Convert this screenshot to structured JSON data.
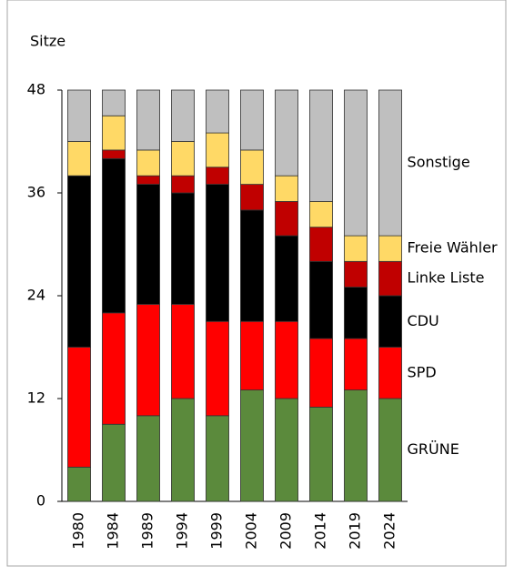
{
  "chart_data": {
    "type": "stacked-bar",
    "ylabel": "Sitze",
    "categories": [
      "1980",
      "1984",
      "1989",
      "1994",
      "1999",
      "2004",
      "2009",
      "2014",
      "2019",
      "2024"
    ],
    "series": [
      {
        "name": "GRÜNE",
        "color": "#5b8a3c",
        "values": [
          4,
          9,
          10,
          12,
          10,
          13,
          12,
          11,
          13,
          12
        ]
      },
      {
        "name": "SPD",
        "color": "#ff0000",
        "values": [
          14,
          13,
          13,
          11,
          11,
          8,
          9,
          8,
          6,
          6
        ]
      },
      {
        "name": "CDU",
        "color": "#000000",
        "values": [
          20,
          18,
          14,
          13,
          16,
          13,
          10,
          9,
          6,
          6
        ]
      },
      {
        "name": "Linke Liste",
        "color": "#c00000",
        "values": [
          0,
          1,
          1,
          2,
          2,
          3,
          4,
          4,
          3,
          4
        ]
      },
      {
        "name": "Freie Wähler",
        "color": "#ffd966",
        "values": [
          4,
          4,
          3,
          4,
          4,
          4,
          3,
          3,
          3,
          3
        ]
      },
      {
        "name": "Sonstige",
        "color": "#bfbfbf",
        "values": [
          6,
          3,
          7,
          6,
          5,
          7,
          10,
          13,
          17,
          17
        ]
      }
    ],
    "ylim": [
      0,
      48
    ],
    "yticks": [
      0,
      12,
      24,
      36,
      48
    ]
  }
}
